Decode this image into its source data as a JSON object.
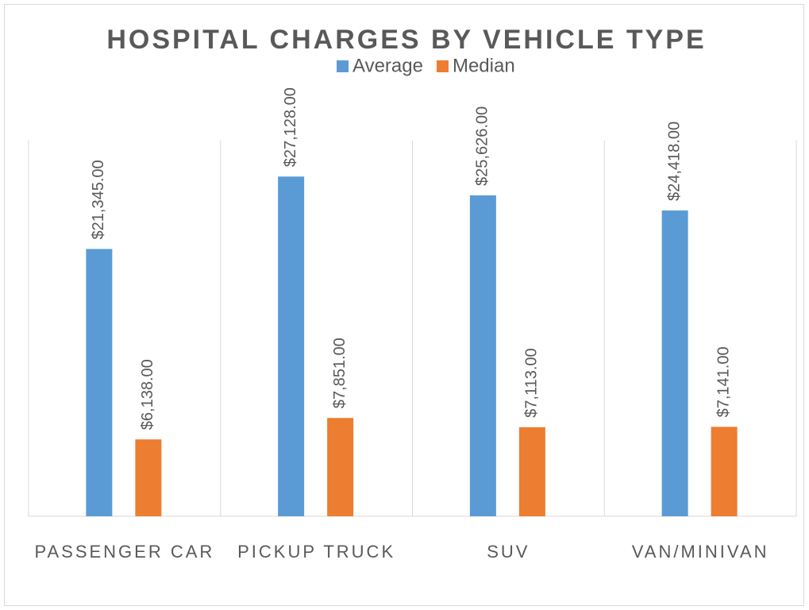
{
  "chart_data": {
    "type": "bar",
    "title": "HOSPITAL CHARGES BY VEHICLE TYPE",
    "categories": [
      "PASSENGER CAR",
      "PICKUP TRUCK",
      "SUV",
      "VAN/MINIVAN"
    ],
    "series": [
      {
        "name": "Average",
        "color": "#5b9bd5",
        "values": [
          21345,
          27128,
          25626,
          24418
        ],
        "value_labels": [
          "$21,345.00",
          "$27,128.00",
          "$25,626.00",
          "$24,418.00"
        ]
      },
      {
        "name": "Median",
        "color": "#ed7d31",
        "values": [
          6138,
          7851,
          7113,
          7141
        ],
        "value_labels": [
          "$6,138.00",
          "$7,851.00",
          "$7,113.00",
          "$7,141.00"
        ]
      }
    ],
    "ylim": [
      0,
      30000
    ],
    "legend": "top"
  }
}
